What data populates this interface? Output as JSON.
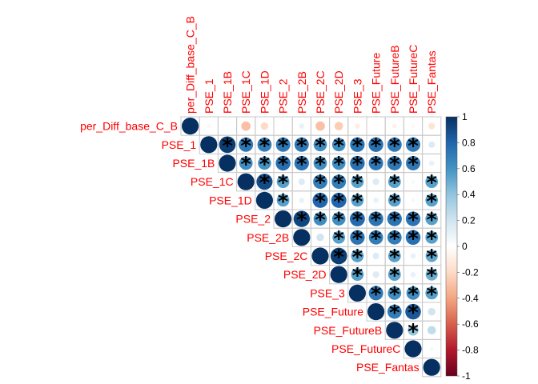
{
  "chart_data": {
    "type": "heatmap",
    "subtype": "correlation-upper",
    "variables": [
      "per_Diff_base_C_B",
      "PSE_1",
      "PSE_1B",
      "PSE_1C",
      "PSE_1D",
      "PSE_2",
      "PSE_2B",
      "PSE_2C",
      "PSE_2D",
      "PSE_3",
      "PSE_Future",
      "PSE_FutureB",
      "PSE_FutureC",
      "PSE_Fantas"
    ],
    "correlations": [
      [
        1.0,
        -0.05,
        -0.02,
        -0.3,
        -0.2,
        -0.03,
        0.1,
        -0.3,
        -0.25,
        -0.1,
        -0.02,
        -0.08,
        -0.05,
        -0.15
      ],
      [
        null,
        1.0,
        0.95,
        0.72,
        0.7,
        0.72,
        0.72,
        0.62,
        0.62,
        0.74,
        0.75,
        0.72,
        0.72,
        0.15
      ],
      [
        null,
        null,
        1.0,
        0.62,
        0.6,
        0.76,
        0.74,
        0.62,
        0.62,
        0.75,
        0.72,
        0.72,
        0.72,
        0.1
      ],
      [
        null,
        null,
        null,
        1.0,
        0.9,
        0.55,
        0.15,
        0.7,
        0.7,
        0.55,
        0.15,
        0.55,
        0.05,
        0.55
      ],
      [
        null,
        null,
        null,
        null,
        1.0,
        0.55,
        0.1,
        0.8,
        0.8,
        0.55,
        0.1,
        0.55,
        0.05,
        0.55
      ],
      [
        null,
        null,
        null,
        null,
        null,
        1.0,
        0.92,
        0.62,
        0.62,
        0.78,
        0.74,
        0.74,
        0.74,
        0.55
      ],
      [
        null,
        null,
        null,
        null,
        null,
        null,
        1.0,
        0.2,
        0.55,
        0.74,
        0.7,
        0.7,
        0.76,
        0.55
      ],
      [
        null,
        null,
        null,
        null,
        null,
        null,
        null,
        1.0,
        0.95,
        0.55,
        0.15,
        0.55,
        0.1,
        0.52
      ],
      [
        null,
        null,
        null,
        null,
        null,
        null,
        null,
        null,
        1.0,
        0.55,
        0.15,
        0.55,
        0.1,
        0.5
      ],
      [
        null,
        null,
        null,
        null,
        null,
        null,
        null,
        null,
        null,
        1.0,
        0.72,
        0.62,
        0.62,
        0.55
      ],
      [
        null,
        null,
        null,
        null,
        null,
        null,
        null,
        null,
        null,
        null,
        1.0,
        0.7,
        0.85,
        0.2
      ],
      [
        null,
        null,
        null,
        null,
        null,
        null,
        null,
        null,
        null,
        null,
        null,
        1.0,
        0.4,
        0.25
      ],
      [
        null,
        null,
        null,
        null,
        null,
        null,
        null,
        null,
        null,
        null,
        null,
        null,
        1.0,
        0.05
      ],
      [
        null,
        null,
        null,
        null,
        null,
        null,
        null,
        null,
        null,
        null,
        null,
        null,
        null,
        1.0
      ]
    ],
    "significant": [
      [
        0,
        0,
        0,
        0,
        0,
        0,
        0,
        0,
        0,
        0,
        0,
        0,
        0,
        0
      ],
      [
        0,
        0,
        1,
        1,
        1,
        1,
        1,
        1,
        1,
        1,
        1,
        1,
        1,
        0
      ],
      [
        0,
        0,
        0,
        1,
        1,
        1,
        1,
        1,
        1,
        1,
        1,
        1,
        1,
        0
      ],
      [
        0,
        0,
        0,
        0,
        1,
        1,
        0,
        1,
        1,
        1,
        0,
        1,
        0,
        1
      ],
      [
        0,
        0,
        0,
        0,
        0,
        1,
        0,
        1,
        1,
        1,
        0,
        1,
        0,
        1
      ],
      [
        0,
        0,
        0,
        0,
        0,
        0,
        1,
        1,
        1,
        1,
        1,
        1,
        1,
        1
      ],
      [
        0,
        0,
        0,
        0,
        0,
        0,
        0,
        0,
        1,
        1,
        1,
        1,
        1,
        1
      ],
      [
        0,
        0,
        0,
        0,
        0,
        0,
        0,
        0,
        1,
        1,
        0,
        1,
        0,
        1
      ],
      [
        0,
        0,
        0,
        0,
        0,
        0,
        0,
        0,
        0,
        1,
        0,
        1,
        0,
        1
      ],
      [
        0,
        0,
        0,
        0,
        0,
        0,
        0,
        0,
        0,
        0,
        1,
        1,
        1,
        1
      ],
      [
        0,
        0,
        0,
        0,
        0,
        0,
        0,
        0,
        0,
        0,
        0,
        1,
        1,
        0
      ],
      [
        0,
        0,
        0,
        0,
        0,
        0,
        0,
        0,
        0,
        0,
        0,
        0,
        1,
        0
      ],
      [
        0,
        0,
        0,
        0,
        0,
        0,
        0,
        0,
        0,
        0,
        0,
        0,
        0,
        0
      ],
      [
        0,
        0,
        0,
        0,
        0,
        0,
        0,
        0,
        0,
        0,
        0,
        0,
        0,
        0
      ]
    ],
    "significance_mark": "*",
    "legend": {
      "min": -1,
      "max": 1,
      "ticks": [
        "1",
        "0.8",
        "0.6",
        "0.4",
        "0.2",
        "0",
        "-0.2",
        "-0.4",
        "-0.6",
        "-0.8",
        "-1"
      ],
      "placement": "right",
      "colors": [
        "#67001F",
        "#B2182B",
        "#D6604D",
        "#F4A582",
        "#FDDBC7",
        "#FFFFFF",
        "#D1E5F0",
        "#92C5DE",
        "#4393C3",
        "#2166AC",
        "#053061"
      ]
    }
  }
}
